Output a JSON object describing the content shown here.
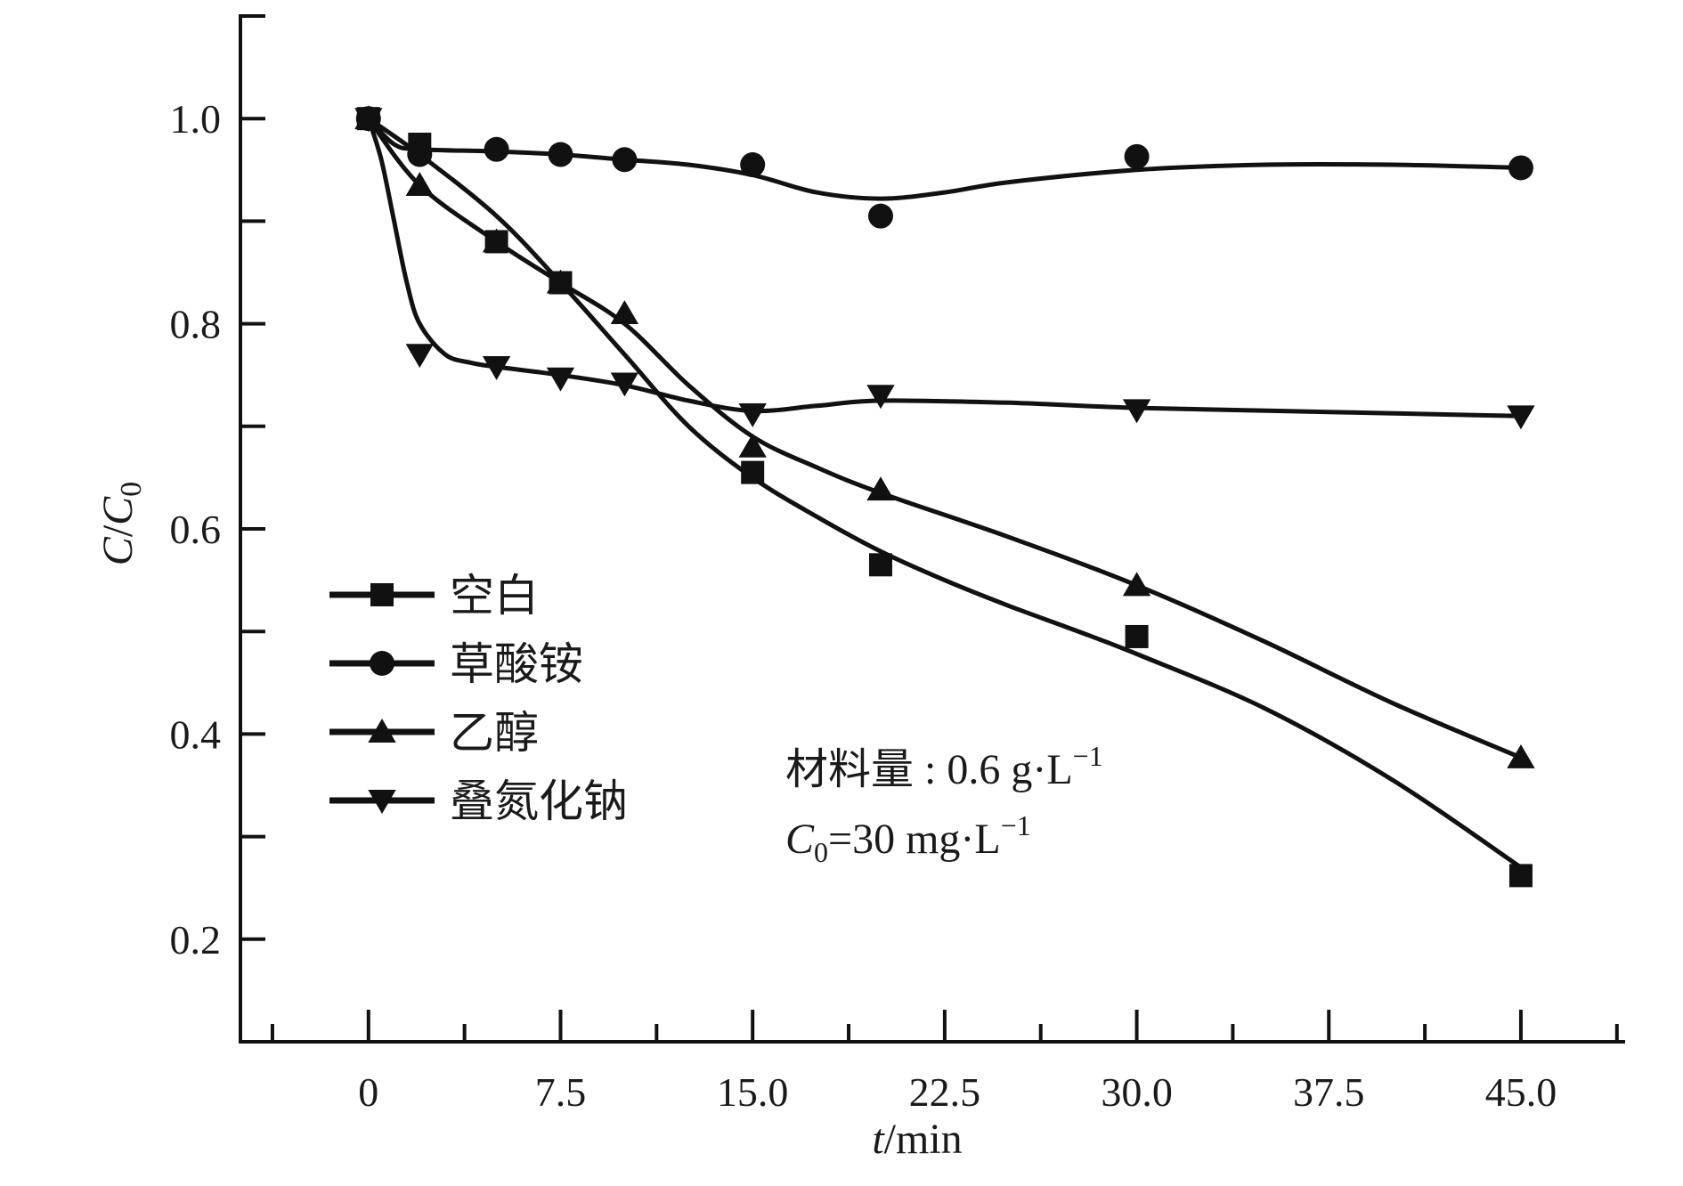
{
  "chart_data": {
    "type": "line",
    "title": "",
    "xlabel": {
      "var": "t",
      "unit": "/min"
    },
    "ylabel": {
      "var": "C",
      "sep": "/",
      "var2": "C",
      "sub": "0"
    },
    "xlim": [
      -5,
      49
    ],
    "ylim": [
      0.1,
      1.1
    ],
    "xticks": [
      0,
      7.5,
      15.0,
      22.5,
      30.0,
      37.5,
      45.0
    ],
    "xtick_labels": [
      "0",
      "7.5",
      "15.0",
      "22.5",
      "30.0",
      "37.5",
      "45.0"
    ],
    "xminor_step": 3.75,
    "yticks": [
      0.2,
      0.4,
      0.6,
      0.8,
      1.0
    ],
    "ytick_labels": [
      "0.2",
      "0.4",
      "0.6",
      "0.8",
      "1.0"
    ],
    "yminor_step": 0.1,
    "series": [
      {
        "name": "空白",
        "marker": "square",
        "x": [
          0,
          2,
          5,
          7.5,
          15,
          20,
          30,
          45
        ],
        "values": [
          1.0,
          0.975,
          0.88,
          0.84,
          0.655,
          0.565,
          0.495,
          0.262
        ],
        "fit_x": [
          0,
          2,
          5,
          7.5,
          10,
          12.5,
          15,
          17.5,
          20,
          22.5,
          25,
          27.5,
          30,
          35,
          40,
          45
        ],
        "fit_y": [
          1.0,
          0.965,
          0.905,
          0.84,
          0.77,
          0.7,
          0.65,
          0.612,
          0.578,
          0.55,
          0.525,
          0.502,
          0.478,
          0.425,
          0.355,
          0.27
        ]
      },
      {
        "name": "草酸铵",
        "marker": "circle",
        "x": [
          0,
          2,
          5,
          7.5,
          10,
          15,
          20,
          30,
          45
        ],
        "values": [
          1.0,
          0.965,
          0.97,
          0.965,
          0.96,
          0.955,
          0.905,
          0.963,
          0.952
        ],
        "fit_x": [
          0,
          1,
          2,
          5,
          7.5,
          10,
          12.5,
          15,
          17.5,
          20,
          22.5,
          25,
          30,
          35,
          40,
          45
        ],
        "fit_y": [
          1.0,
          0.975,
          0.97,
          0.968,
          0.965,
          0.96,
          0.955,
          0.945,
          0.928,
          0.922,
          0.928,
          0.938,
          0.95,
          0.955,
          0.955,
          0.952
        ]
      },
      {
        "name": "乙醇",
        "marker": "triangle",
        "x": [
          0,
          2,
          5,
          7.5,
          10,
          15,
          20,
          30,
          45
        ],
        "values": [
          1.0,
          0.935,
          0.88,
          0.84,
          0.81,
          0.68,
          0.638,
          0.545,
          0.377
        ],
        "fit_x": [
          0,
          2,
          5,
          7.5,
          10,
          12.5,
          15,
          17.5,
          20,
          25,
          30,
          35,
          40,
          45
        ],
        "fit_y": [
          1.0,
          0.935,
          0.88,
          0.84,
          0.8,
          0.74,
          0.69,
          0.66,
          0.635,
          0.592,
          0.545,
          0.49,
          0.43,
          0.377
        ]
      },
      {
        "name": "叠氮化钠",
        "marker": "triangle-down",
        "x": [
          0,
          2,
          5,
          7.5,
          10,
          15,
          20,
          30,
          45
        ],
        "values": [
          1.0,
          0.77,
          0.758,
          0.747,
          0.742,
          0.712,
          0.73,
          0.716,
          0.71
        ],
        "fit_x": [
          0,
          0.5,
          1,
          1.5,
          2,
          3,
          4,
          5,
          7.5,
          10,
          12.5,
          15,
          17.5,
          20,
          25,
          30,
          37.5,
          45
        ],
        "fit_y": [
          1.0,
          0.96,
          0.9,
          0.84,
          0.8,
          0.77,
          0.762,
          0.758,
          0.75,
          0.74,
          0.725,
          0.715,
          0.72,
          0.725,
          0.723,
          0.718,
          0.714,
          0.71
        ]
      }
    ],
    "legend_position": "left-center",
    "annotations": [
      {
        "text": "材料量 : 0.6 g·L",
        "sup": "−1"
      },
      {
        "var": "C",
        "sub": "0",
        "text": "=30 mg·L",
        "sup": "−1"
      }
    ]
  }
}
